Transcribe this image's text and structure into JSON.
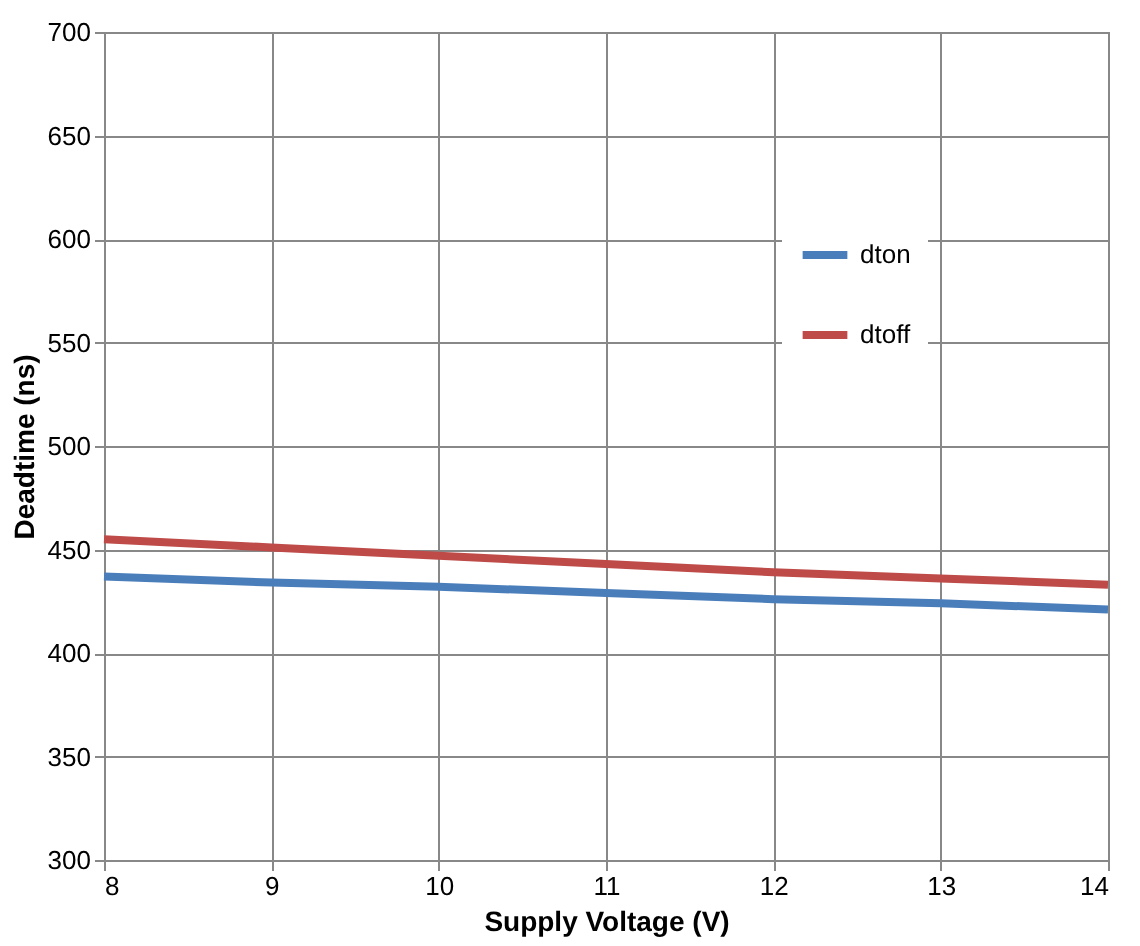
{
  "chart_data": {
    "type": "line",
    "xlabel": "Supply Voltage (V)",
    "ylabel": "Deadtime (ns)",
    "x": [
      8,
      9,
      10,
      11,
      12,
      13,
      14
    ],
    "series": [
      {
        "name": "dton",
        "color": "#4a7ebb",
        "values": [
          437,
          434,
          432,
          429,
          426,
          424,
          421
        ]
      },
      {
        "name": "dtoff",
        "color": "#be4b48",
        "values": [
          455,
          451,
          447,
          443,
          439,
          436,
          433
        ]
      }
    ],
    "xlim": [
      8,
      14
    ],
    "xticks": [
      8,
      9,
      10,
      11,
      12,
      13,
      14
    ],
    "ylim": [
      300,
      700
    ],
    "yticks": [
      300,
      350,
      400,
      450,
      500,
      550,
      600,
      650,
      700
    ],
    "grid": true,
    "legend": "top right",
    "marker": "none",
    "line_style": "solid"
  }
}
